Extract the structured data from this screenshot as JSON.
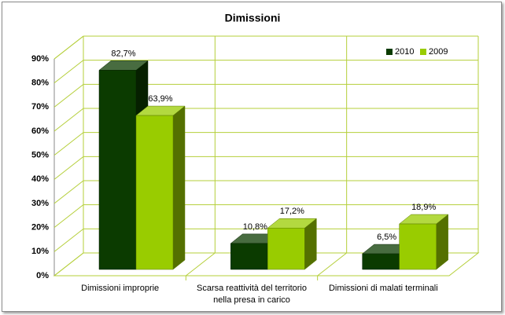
{
  "chart_data": {
    "type": "bar3d",
    "title": "Dimissioni",
    "categories": [
      "Dimissioni improprie",
      "Scarsa reattività del territorio nella presa in carico",
      "Dimissioni di malati terminali"
    ],
    "series": [
      {
        "name": "2010",
        "color": "#0b3b00",
        "values": [
          82.7,
          10.8,
          6.5
        ],
        "value_labels": [
          "82,7%",
          "10,8%",
          "6,5%"
        ]
      },
      {
        "name": "2009",
        "color": "#99cc00",
        "values": [
          63.9,
          17.2,
          18.9
        ],
        "value_labels": [
          "63,9%",
          "17,2%",
          "18,9%"
        ]
      }
    ],
    "ylim": [
      0,
      90
    ],
    "yticks": [
      {
        "value": 0,
        "label": "0%"
      },
      {
        "value": 10,
        "label": "10%"
      },
      {
        "value": 20,
        "label": "20%"
      },
      {
        "value": 30,
        "label": "30%"
      },
      {
        "value": 40,
        "label": "40%"
      },
      {
        "value": 50,
        "label": "50%"
      },
      {
        "value": 60,
        "label": "60%"
      },
      {
        "value": 70,
        "label": "70%"
      },
      {
        "value": 80,
        "label": "80%"
      },
      {
        "value": 90,
        "label": "90%"
      }
    ],
    "grid": true,
    "legend": "top-right"
  }
}
